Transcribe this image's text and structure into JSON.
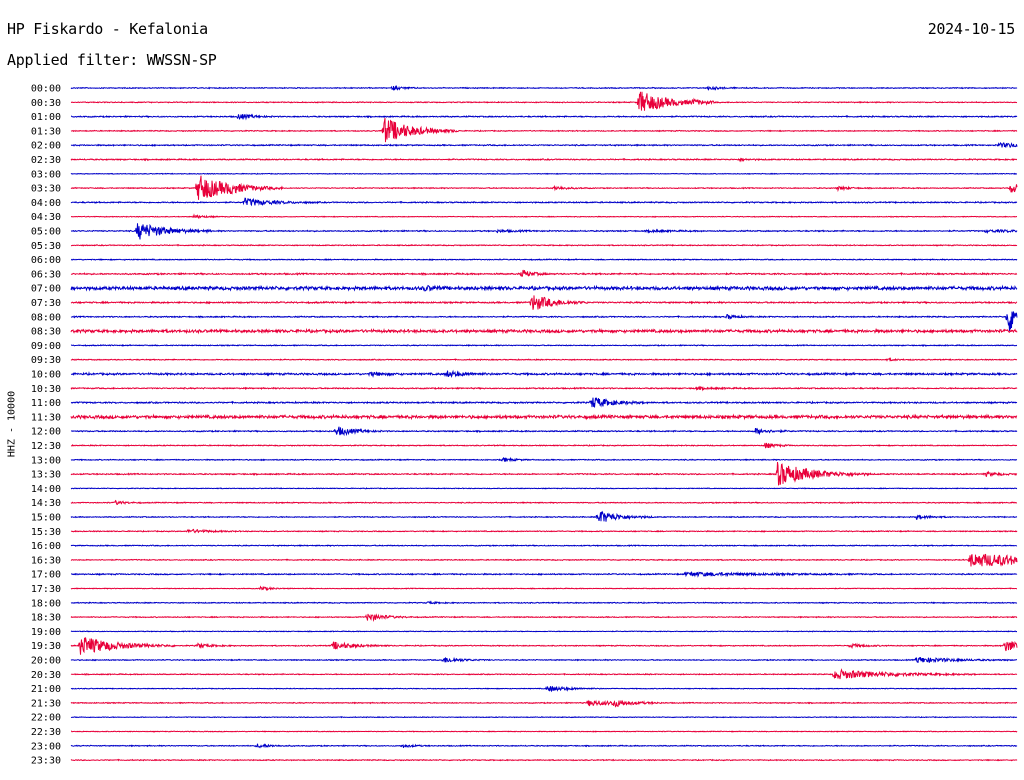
{
  "header": {
    "station": "HP Fiskardo - Kefalonia",
    "date": "2024-10-15",
    "filter": "Applied filter: WWSSN-SP"
  },
  "channel_label": "HHZ - 10000",
  "colors": {
    "trace_a": "#0000c8",
    "trace_b": "#e8003a",
    "text": "#000000",
    "background": "#ffffff"
  },
  "chart_data": {
    "type": "line",
    "title": "HP Fiskardo - Kefalonia",
    "subtitle": "Applied filter: WWSSN-SP",
    "ylabel": "HHZ - 10000",
    "xlabel": "",
    "grid": false,
    "legend": "none",
    "row_labels": [
      "00:00",
      "00:30",
      "01:00",
      "01:30",
      "02:00",
      "02:30",
      "03:00",
      "03:30",
      "04:00",
      "04:30",
      "05:00",
      "05:30",
      "06:00",
      "06:30",
      "07:00",
      "07:30",
      "08:00",
      "08:30",
      "09:00",
      "09:30",
      "10:00",
      "10:30",
      "11:00",
      "11:30",
      "12:00",
      "12:30",
      "13:00",
      "13:30",
      "14:00",
      "14:30",
      "15:00",
      "15:30",
      "16:00",
      "16:30",
      "17:00",
      "17:30",
      "18:00",
      "18:30",
      "19:00",
      "19:30",
      "20:00",
      "20:30",
      "21:00",
      "21:30",
      "22:00",
      "22:30",
      "23:00",
      "23:30"
    ],
    "x_range_minutes": [
      0,
      30
    ],
    "rows": [
      {
        "noise": 0.4,
        "events": [
          {
            "t": 10.2,
            "amp": 2,
            "dur": 0.3
          },
          {
            "t": 20.2,
            "amp": 2,
            "dur": 0.3
          }
        ]
      },
      {
        "noise": 0.4,
        "events": [
          {
            "t": 18.0,
            "amp": 12,
            "dur": 0.8
          },
          {
            "t": 19.7,
            "amp": 2,
            "dur": 0.3
          }
        ]
      },
      {
        "noise": 0.5,
        "events": [
          {
            "t": 5.3,
            "amp": 3,
            "dur": 0.4
          }
        ]
      },
      {
        "noise": 0.4,
        "events": [
          {
            "t": 9.9,
            "amp": 14,
            "dur": 0.8
          }
        ]
      },
      {
        "noise": 0.5,
        "events": [
          {
            "t": 29.4,
            "amp": 2,
            "dur": 2.0
          }
        ]
      },
      {
        "noise": 0.5,
        "events": [
          {
            "t": 21.2,
            "amp": 1,
            "dur": 0.3
          }
        ]
      },
      {
        "noise": 0.3,
        "events": []
      },
      {
        "noise": 0.4,
        "events": [
          {
            "t": 4.0,
            "amp": 14,
            "dur": 0.9
          },
          {
            "t": 5.0,
            "amp": 2,
            "dur": 0.3
          },
          {
            "t": 15.3,
            "amp": 2,
            "dur": 0.4
          },
          {
            "t": 24.3,
            "amp": 2,
            "dur": 0.3
          },
          {
            "t": 29.8,
            "amp": 5,
            "dur": 0.8
          }
        ]
      },
      {
        "noise": 0.5,
        "events": [
          {
            "t": 5.5,
            "amp": 4,
            "dur": 0.8
          }
        ]
      },
      {
        "noise": 0.3,
        "events": [
          {
            "t": 3.9,
            "amp": 2,
            "dur": 0.3
          }
        ]
      },
      {
        "noise": 0.5,
        "events": [
          {
            "t": 2.1,
            "amp": 9,
            "dur": 0.8
          },
          {
            "t": 13.5,
            "amp": 1,
            "dur": 0.6
          },
          {
            "t": 18.3,
            "amp": 1,
            "dur": 0.6
          },
          {
            "t": 29.0,
            "amp": 1,
            "dur": 2.0
          }
        ]
      },
      {
        "noise": 0.4,
        "events": []
      },
      {
        "noise": 0.4,
        "events": []
      },
      {
        "noise": 0.6,
        "events": [
          {
            "t": 14.3,
            "amp": 4,
            "dur": 0.3
          }
        ]
      },
      {
        "noise": 1.4,
        "events": [
          {
            "t": 11.2,
            "amp": 2,
            "dur": 0.3
          }
        ]
      },
      {
        "noise": 0.6,
        "events": [
          {
            "t": 14.6,
            "amp": 9,
            "dur": 0.6
          }
        ]
      },
      {
        "noise": 0.5,
        "events": [
          {
            "t": 20.8,
            "amp": 2,
            "dur": 0.3
          },
          {
            "t": 29.7,
            "amp": 16,
            "dur": 1.0
          }
        ]
      },
      {
        "noise": 1.2,
        "events": []
      },
      {
        "noise": 0.4,
        "events": []
      },
      {
        "noise": 0.4,
        "events": [
          {
            "t": 25.9,
            "amp": 1,
            "dur": 0.3
          }
        ]
      },
      {
        "noise": 0.8,
        "events": [
          {
            "t": 9.5,
            "amp": 2,
            "dur": 0.4
          },
          {
            "t": 11.9,
            "amp": 3,
            "dur": 0.5
          }
        ]
      },
      {
        "noise": 0.5,
        "events": [
          {
            "t": 19.8,
            "amp": 1,
            "dur": 0.6
          }
        ]
      },
      {
        "noise": 0.6,
        "events": [
          {
            "t": 16.5,
            "amp": 6,
            "dur": 0.6
          }
        ]
      },
      {
        "noise": 1.3,
        "events": []
      },
      {
        "noise": 0.5,
        "events": [
          {
            "t": 8.4,
            "amp": 5,
            "dur": 0.5
          },
          {
            "t": 21.7,
            "amp": 3,
            "dur": 0.4
          }
        ]
      },
      {
        "noise": 0.4,
        "events": [
          {
            "t": 22.0,
            "amp": 3,
            "dur": 0.3
          }
        ]
      },
      {
        "noise": 0.4,
        "events": [
          {
            "t": 13.7,
            "amp": 2,
            "dur": 0.3
          }
        ]
      },
      {
        "noise": 0.5,
        "events": [
          {
            "t": 22.4,
            "amp": 12,
            "dur": 1.0
          },
          {
            "t": 29.0,
            "amp": 2,
            "dur": 0.4
          }
        ]
      },
      {
        "noise": 0.3,
        "events": []
      },
      {
        "noise": 0.4,
        "events": [
          {
            "t": 1.4,
            "amp": 2,
            "dur": 0.3
          }
        ]
      },
      {
        "noise": 0.4,
        "events": [
          {
            "t": 16.7,
            "amp": 7,
            "dur": 0.6
          },
          {
            "t": 26.8,
            "amp": 2,
            "dur": 0.4
          }
        ]
      },
      {
        "noise": 0.4,
        "events": [
          {
            "t": 3.7,
            "amp": 2,
            "dur": 0.6
          }
        ]
      },
      {
        "noise": 0.4,
        "events": []
      },
      {
        "noise": 0.4,
        "events": [
          {
            "t": 28.5,
            "amp": 7,
            "dur": 3.0
          }
        ]
      },
      {
        "noise": 0.5,
        "events": [
          {
            "t": 19.5,
            "amp": 2,
            "dur": 2.0
          }
        ]
      },
      {
        "noise": 0.3,
        "events": [
          {
            "t": 6.0,
            "amp": 2,
            "dur": 0.3
          }
        ]
      },
      {
        "noise": 0.4,
        "events": [
          {
            "t": 11.3,
            "amp": 1,
            "dur": 0.3
          }
        ]
      },
      {
        "noise": 0.4,
        "events": [
          {
            "t": 9.4,
            "amp": 4,
            "dur": 0.5
          }
        ]
      },
      {
        "noise": 0.3,
        "events": []
      },
      {
        "noise": 0.4,
        "events": [
          {
            "t": 0.3,
            "amp": 10,
            "dur": 1.0
          },
          {
            "t": 4.0,
            "amp": 2,
            "dur": 0.4
          },
          {
            "t": 8.3,
            "amp": 4,
            "dur": 0.6
          },
          {
            "t": 24.7,
            "amp": 2,
            "dur": 0.4
          },
          {
            "t": 29.6,
            "amp": 6,
            "dur": 0.8
          }
        ]
      },
      {
        "noise": 0.4,
        "events": [
          {
            "t": 11.8,
            "amp": 3,
            "dur": 0.5
          },
          {
            "t": 26.8,
            "amp": 3,
            "dur": 1.0
          }
        ]
      },
      {
        "noise": 0.4,
        "events": [
          {
            "t": 24.2,
            "amp": 5,
            "dur": 1.5
          }
        ]
      },
      {
        "noise": 0.3,
        "events": [
          {
            "t": 15.1,
            "amp": 3,
            "dur": 0.6
          }
        ]
      },
      {
        "noise": 0.4,
        "events": [
          {
            "t": 16.4,
            "amp": 3,
            "dur": 0.8
          },
          {
            "t": 17.2,
            "amp": 3,
            "dur": 0.5
          }
        ]
      },
      {
        "noise": 0.3,
        "events": []
      },
      {
        "noise": 0.3,
        "events": []
      },
      {
        "noise": 0.4,
        "events": [
          {
            "t": 5.9,
            "amp": 2,
            "dur": 0.4
          },
          {
            "t": 10.5,
            "amp": 2,
            "dur": 0.3
          }
        ]
      },
      {
        "noise": 0.4,
        "events": []
      }
    ]
  }
}
